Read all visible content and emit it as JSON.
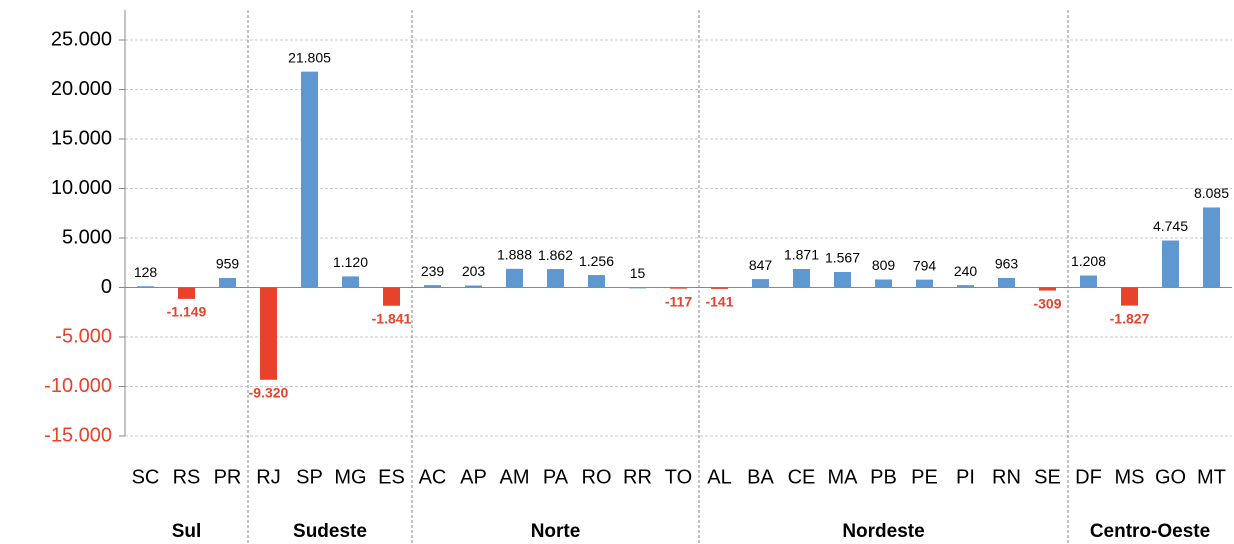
{
  "chart_data": {
    "type": "bar",
    "categories": [
      "SC",
      "RS",
      "PR",
      "RJ",
      "SP",
      "MG",
      "ES",
      "AC",
      "AP",
      "AM",
      "PA",
      "RO",
      "RR",
      "TO",
      "AL",
      "BA",
      "CE",
      "MA",
      "PB",
      "PE",
      "PI",
      "RN",
      "SE",
      "DF",
      "MS",
      "GO",
      "MT"
    ],
    "values": [
      128,
      -1149,
      959,
      -9320,
      21805,
      1120,
      -1841,
      239,
      203,
      1888,
      1862,
      1256,
      15,
      -117,
      -141,
      847,
      1871,
      1567,
      809,
      794,
      240,
      963,
      -309,
      1208,
      -1827,
      4745,
      8085
    ],
    "value_labels": [
      "128",
      "-1.149",
      "959",
      "-9.320",
      "21.805",
      "1.120",
      "-1.841",
      "239",
      "203",
      "1.888",
      "1.862",
      "1.256",
      "15",
      "-117",
      "-141",
      "847",
      "1.871",
      "1.567",
      "809",
      "794",
      "240",
      "963",
      "-309",
      "1.208",
      "-1.827",
      "4.745",
      "8.085"
    ],
    "color": "#5f97d0",
    "negative_color": "#e8412c",
    "ylim": [
      -15000,
      25000
    ],
    "yticks": [
      {
        "value": -15000,
        "label": "-15.000"
      },
      {
        "value": -10000,
        "label": "-10.000"
      },
      {
        "value": -5000,
        "label": "-5.000"
      },
      0,
      {
        "value": 5000,
        "label": "5.000"
      },
      {
        "value": 10000,
        "label": "10.000"
      },
      {
        "value": 15000,
        "label": "15.000"
      },
      {
        "value": 20000,
        "label": "20.000"
      },
      {
        "value": 25000,
        "label": "25.000"
      }
    ],
    "grid": true,
    "groups": [
      {
        "name": "Sul",
        "size": 3
      },
      {
        "name": "Sudeste",
        "size": 4
      },
      {
        "name": "Norte",
        "size": 7
      },
      {
        "name": "Nordeste",
        "size": 9
      },
      {
        "name": "Centro-Oeste",
        "size": 4
      }
    ]
  }
}
